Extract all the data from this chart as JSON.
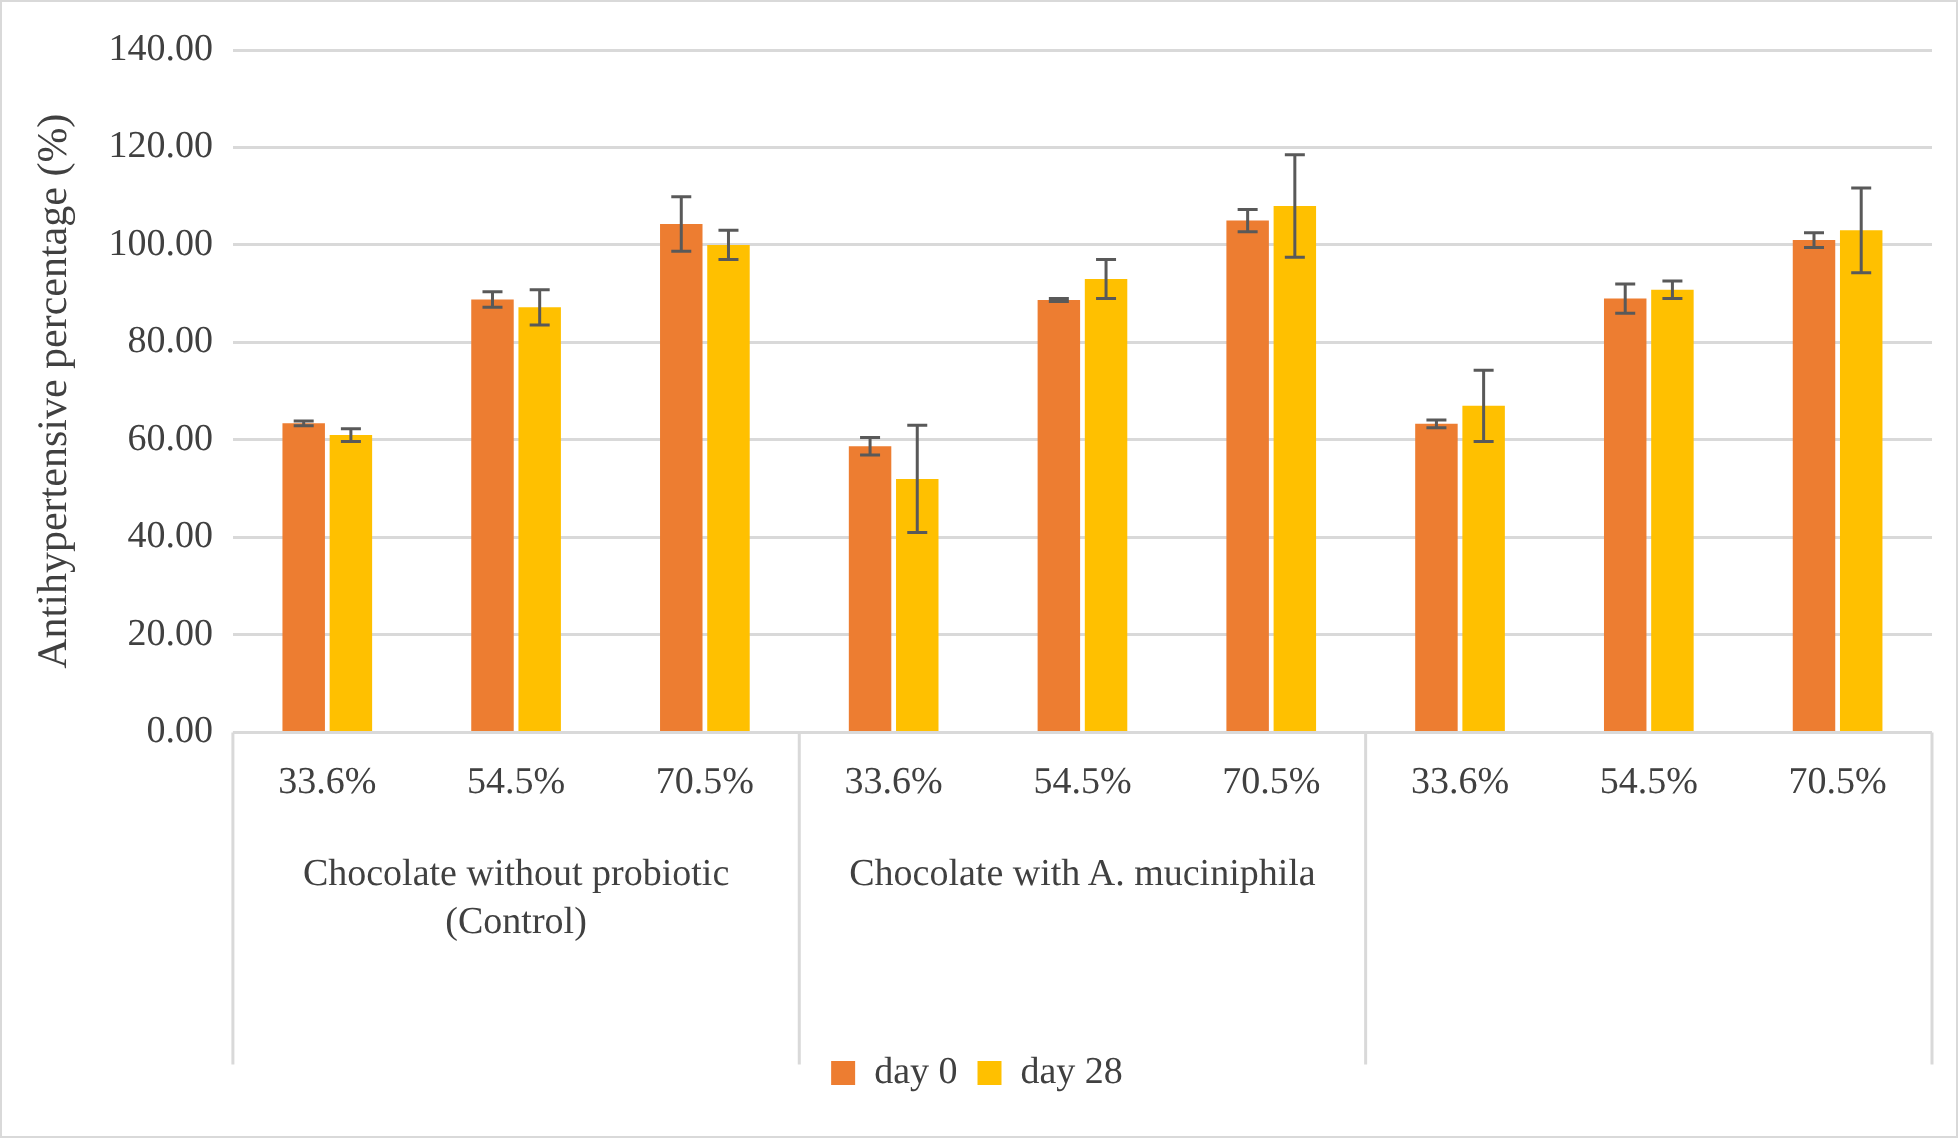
{
  "chart_data": {
    "type": "bar",
    "ylabel": "Antihypertensive percentage (%)",
    "categories": [
      "33.6%",
      "54.5%",
      "70.5%",
      "33.6%",
      "54.5%",
      "70.5%",
      "33.6%",
      "54.5%",
      "70.5%"
    ],
    "annotations": [
      "Chocolate without probiotic (Control)",
      "Chocolate with A. muciniphila"
    ],
    "series": [
      {
        "name": "day 0",
        "color": "#ed7d31",
        "values": [
          63.4,
          88.8,
          104.3,
          58.7,
          88.7,
          105,
          63.3,
          89,
          101
        ],
        "errors": [
          0.5,
          1.6,
          5.6,
          1.8,
          0.3,
          2.3,
          0.8,
          3,
          1.5
        ]
      },
      {
        "name": "day 28",
        "color": "#ffc000",
        "values": [
          61,
          87.2,
          100,
          52,
          93,
          108,
          67,
          90.8,
          103
        ],
        "errors": [
          1.3,
          3.6,
          3,
          11,
          4,
          10.5,
          7.3,
          1.8,
          8.7
        ]
      }
    ],
    "ylim": [
      0,
      140
    ],
    "yticks": [
      {
        "value": 0,
        "label": "0.00"
      },
      {
        "value": 20,
        "label": "20.00"
      },
      {
        "value": 40,
        "label": "40.00"
      },
      {
        "value": 60,
        "label": "60.00"
      },
      {
        "value": 80,
        "label": "80.00"
      },
      {
        "value": 100,
        "label": "100.00"
      },
      {
        "value": 120,
        "label": "120.00"
      },
      {
        "value": 140,
        "label": "140.00"
      }
    ],
    "grid": "y",
    "legend": "bottom"
  }
}
